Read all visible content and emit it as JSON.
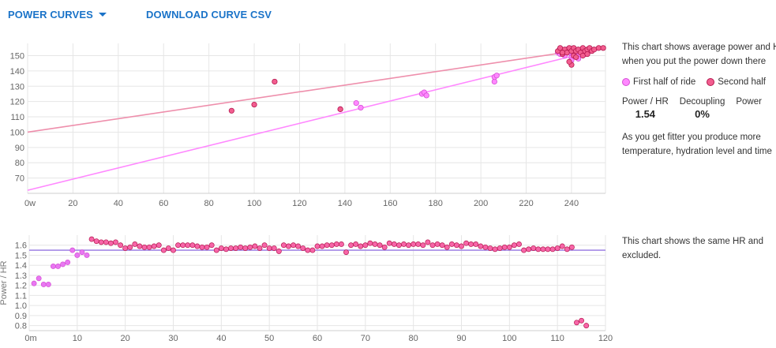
{
  "toolbar": {
    "power_curves_label": "POWER CURVES",
    "download_label": "DOWNLOAD CURVE CSV"
  },
  "colors": {
    "first_half": "#ff88ff",
    "first_half_stroke": "#d44fd4",
    "second_half": "#f25d8f",
    "second_half_stroke": "#b5184f",
    "second_half_line": "#ee8fac",
    "ratio_line": "#a48ae6",
    "ratio_point": "#f765a8",
    "ratio_point_early": "#e977f2",
    "grid": "#e6e6e6",
    "tick": "#666666",
    "toolbar_blue": "#1a73c8"
  },
  "side_top": {
    "text_line1": "This chart shows average power and HR",
    "text_line2": "when you put the power down there",
    "legend_first": "First half of ride",
    "legend_second": "Second half",
    "stat1_label": "Power / HR",
    "stat1_value": "1.54",
    "stat2_label": "Decoupling",
    "stat2_value": "0%",
    "stat3_label": "Power",
    "text2_line1": "As you get fitter you produce more",
    "text2_line2": "temperature, hydration level and time"
  },
  "side_bottom": {
    "text_line1": "This chart shows the same HR and",
    "text_line2": "excluded."
  },
  "chart_data": [
    {
      "type": "scatter",
      "xlim": [
        0,
        255
      ],
      "ylim": [
        60,
        158
      ],
      "x_ticks": [
        "0w",
        "20",
        "40",
        "60",
        "80",
        "100",
        "120",
        "140",
        "160",
        "180",
        "200",
        "220",
        "240"
      ],
      "y_ticks": [
        "70",
        "80",
        "90",
        "100",
        "110",
        "120",
        "130",
        "140",
        "150"
      ],
      "grid": true,
      "series": [
        {
          "points": [
            [
              138,
              115
            ],
            [
              145,
              119
            ],
            [
              147,
              116
            ],
            [
              174,
              125
            ],
            [
              175,
              126
            ],
            [
              176,
              124
            ],
            [
              206,
              133
            ],
            [
              206,
              136
            ],
            [
              207,
              137
            ],
            [
              234,
              152
            ],
            [
              235,
              151
            ],
            [
              236,
              153
            ],
            [
              237,
              150
            ],
            [
              238,
              154
            ],
            [
              239,
              152
            ],
            [
              240,
              149
            ],
            [
              241,
              151
            ],
            [
              242,
              153
            ],
            [
              243,
              150
            ],
            [
              244,
              152
            ],
            [
              246,
              151
            ],
            [
              248,
              153
            ],
            [
              240,
              147
            ],
            [
              243,
              148
            ]
          ],
          "trend": [
            [
              0,
              62
            ],
            [
              255,
              155
            ]
          ]
        },
        {
          "points": [
            [
              90,
              114
            ],
            [
              100,
              118
            ],
            [
              109,
              133
            ],
            [
              138,
              115
            ],
            [
              234,
              153
            ],
            [
              235,
              155
            ],
            [
              236,
              151
            ],
            [
              237,
              154
            ],
            [
              238,
              152
            ],
            [
              239,
              155
            ],
            [
              240,
              153
            ],
            [
              241,
              150
            ],
            [
              241,
              155
            ],
            [
              242,
              153
            ],
            [
              243,
              154
            ],
            [
              244,
              152
            ],
            [
              245,
              155
            ],
            [
              246,
              153
            ],
            [
              247,
              154
            ],
            [
              248,
              155
            ],
            [
              249,
              153
            ],
            [
              250,
              154
            ],
            [
              252,
              155
            ],
            [
              254,
              155
            ],
            [
              240,
              144
            ],
            [
              239,
              146
            ],
            [
              242,
              149
            ],
            [
              245,
              150
            ],
            [
              236,
              152
            ],
            [
              247,
              151
            ]
          ],
          "trend": [
            [
              0,
              100
            ],
            [
              255,
              156
            ]
          ]
        }
      ]
    },
    {
      "type": "scatter",
      "xlim": [
        0,
        120
      ],
      "ylim": [
        0.75,
        1.7
      ],
      "x_ticks": [
        "0m",
        "10",
        "20",
        "30",
        "40",
        "50",
        "60",
        "70",
        "80",
        "90",
        "100",
        "110",
        "120"
      ],
      "y_ticks": [
        "0.8",
        "0.9",
        "1.0",
        "1.1",
        "1.2",
        "1.3",
        "1.4",
        "1.5",
        "1.6"
      ],
      "ylabel": "Power / HR",
      "grid": true,
      "reference_line": 1.55,
      "values": [
        1.22,
        1.27,
        1.21,
        1.21,
        1.39,
        1.39,
        1.41,
        1.43,
        1.55,
        1.5,
        1.53,
        1.5,
        1.66,
        1.64,
        1.63,
        1.63,
        1.62,
        1.63,
        1.6,
        1.57,
        1.58,
        1.61,
        1.59,
        1.58,
        1.58,
        1.59,
        1.6,
        1.55,
        1.57,
        1.55,
        1.6,
        1.6,
        1.6,
        1.6,
        1.59,
        1.58,
        1.58,
        1.6,
        1.55,
        1.57,
        1.56,
        1.57,
        1.57,
        1.58,
        1.57,
        1.58,
        1.59,
        1.57,
        1.6,
        1.57,
        1.57,
        1.54,
        1.6,
        1.59,
        1.6,
        1.59,
        1.57,
        1.55,
        1.55,
        1.59,
        1.59,
        1.6,
        1.6,
        1.61,
        1.61,
        1.53,
        1.6,
        1.61,
        1.59,
        1.6,
        1.62,
        1.61,
        1.6,
        1.58,
        1.62,
        1.61,
        1.6,
        1.61,
        1.6,
        1.61,
        1.61,
        1.6,
        1.63,
        1.6,
        1.61,
        1.6,
        1.58,
        1.61,
        1.6,
        1.59,
        1.62,
        1.61,
        1.61,
        1.59,
        1.58,
        1.57,
        1.56,
        1.57,
        1.58,
        1.58,
        1.6,
        1.61,
        1.55,
        1.56,
        1.57,
        1.56,
        1.56,
        1.56,
        1.56,
        1.57,
        1.59,
        1.56,
        1.58,
        0.83,
        0.85,
        0.8
      ]
    }
  ]
}
